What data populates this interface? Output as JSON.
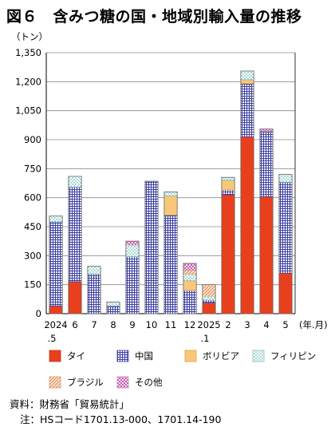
{
  "title": "図６　含みつ糖の国・地域別輸入量の推移",
  "chart_data": {
    "type": "bar",
    "stacked": true,
    "y_unit": "（トン）",
    "x_unit": "(年.月)",
    "ylim": [
      0,
      1350
    ],
    "yticks": [
      0,
      150,
      300,
      450,
      600,
      750,
      900,
      1050,
      1200,
      1350
    ],
    "ytick_labels": [
      "0",
      "150",
      "300",
      "450",
      "600",
      "750",
      "900",
      "1,050",
      "1,200",
      "1,350"
    ],
    "grid": true,
    "legend_position": "bottom",
    "categories": [
      {
        "line1": "2024",
        "line2": ".5"
      },
      {
        "line1": "6",
        "line2": ""
      },
      {
        "line1": "7",
        "line2": ""
      },
      {
        "line1": "8",
        "line2": ""
      },
      {
        "line1": "9",
        "line2": ""
      },
      {
        "line1": "10",
        "line2": ""
      },
      {
        "line1": "11",
        "line2": ""
      },
      {
        "line1": "12",
        "line2": ""
      },
      {
        "line1": "2025",
        "line2": ".1"
      },
      {
        "line1": "2",
        "line2": ""
      },
      {
        "line1": "3",
        "line2": ""
      },
      {
        "line1": "4",
        "line2": ""
      },
      {
        "line1": "5",
        "line2": ""
      }
    ],
    "series": [
      {
        "name": "タイ",
        "pattern": "solid-red",
        "color": "#e8401c",
        "values": [
          40,
          165,
          0,
          0,
          0,
          0,
          0,
          0,
          55,
          615,
          915,
          605,
          210
        ]
      },
      {
        "name": "中国",
        "pattern": "grid-blue",
        "color": "#3d3fa0",
        "values": [
          435,
          490,
          205,
          40,
          295,
          685,
          510,
          120,
          15,
          25,
          275,
          340,
          470
        ]
      },
      {
        "name": "ボリビア",
        "pattern": "solid-orange",
        "color": "#f8c77a",
        "values": [
          0,
          0,
          0,
          0,
          0,
          0,
          100,
          50,
          0,
          50,
          20,
          0,
          0
        ]
      },
      {
        "name": "フィリピン",
        "pattern": "dots-teal",
        "color": "#2aa39a",
        "values": [
          30,
          55,
          40,
          20,
          60,
          0,
          20,
          35,
          20,
          15,
          45,
          0,
          40
        ]
      },
      {
        "name": "ブラジル",
        "pattern": "hatch-orange",
        "color": "#e8a070",
        "values": [
          0,
          0,
          0,
          0,
          0,
          0,
          0,
          20,
          60,
          0,
          0,
          0,
          0
        ]
      },
      {
        "name": "その他",
        "pattern": "cross-magenta",
        "color": "#c040a0",
        "values": [
          0,
          0,
          0,
          0,
          20,
          0,
          0,
          35,
          0,
          0,
          0,
          10,
          0
        ]
      }
    ]
  },
  "notes": {
    "source": "資料：財務省「貿易統計」",
    "note": "注：HSコード1701.13-000、1701.14-190"
  }
}
